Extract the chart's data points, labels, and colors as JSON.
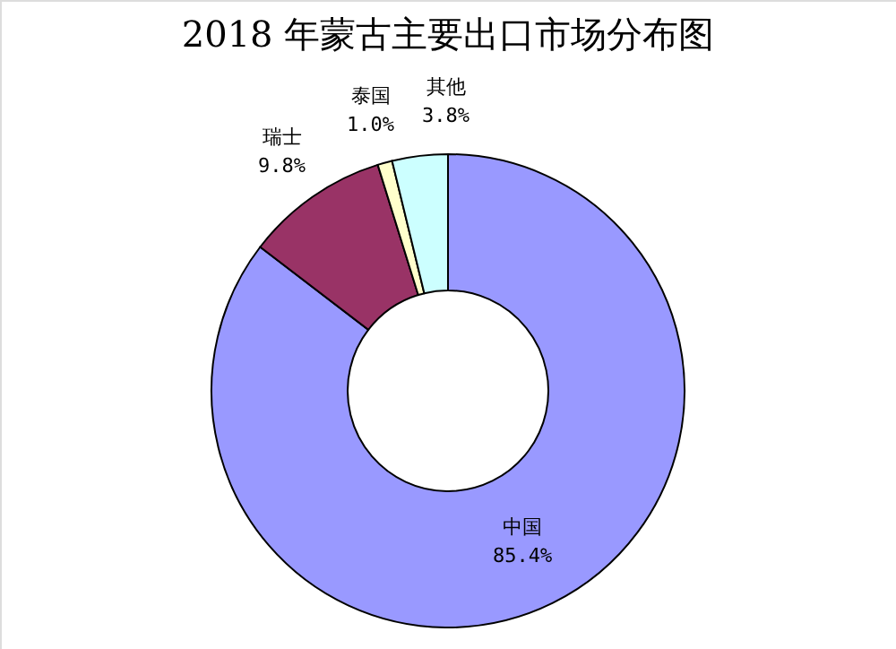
{
  "chart_data": {
    "type": "donut",
    "title": "2018 年蒙古主要出口市场分布图",
    "categories": [
      "中国",
      "瑞士",
      "泰国",
      "其他"
    ],
    "values": [
      85.4,
      9.8,
      1.0,
      3.8
    ],
    "colors": [
      "#9999ff",
      "#993366",
      "#ffffcc",
      "#ccffff"
    ],
    "value_labels": [
      "85.4%",
      "9.8%",
      "1.0%",
      "3.8%"
    ]
  }
}
